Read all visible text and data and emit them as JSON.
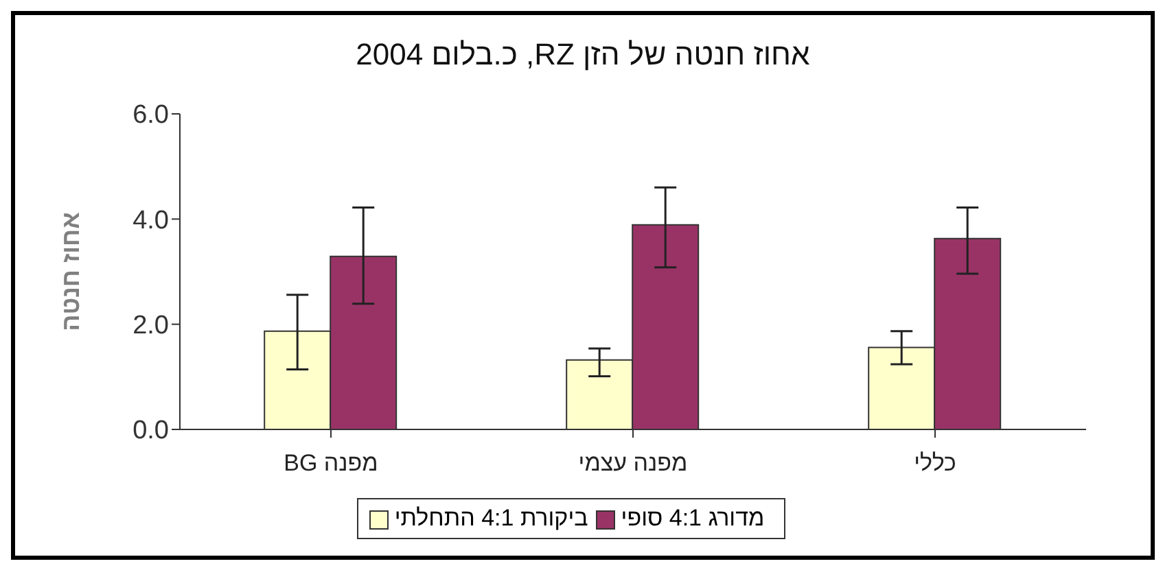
{
  "chart_data": {
    "type": "bar",
    "title": "אחוז חנטה של הזן RZ, כ.בלום 2004",
    "ylabel": "אחוז חנטה",
    "categories": [
      "מפנה BG",
      "מפנה עצמי",
      "כללי"
    ],
    "series": [
      {
        "name": "ביקורת 4:1 התחלתי",
        "color": "#ffffcc",
        "values": [
          1.87,
          1.32,
          1.56
        ],
        "errors": [
          [
            1.14,
            2.56
          ],
          [
            1.01,
            1.54
          ],
          [
            1.24,
            1.87
          ]
        ]
      },
      {
        "name": "מדורג 4:1 סופי",
        "color": "#993366",
        "values": [
          3.29,
          3.89,
          3.63
        ],
        "errors": [
          [
            2.39,
            4.22
          ],
          [
            3.08,
            4.6
          ],
          [
            2.96,
            4.22
          ]
        ]
      }
    ],
    "ylim": [
      0,
      6
    ],
    "yticks": [
      {
        "value": 0,
        "label": "0.0"
      },
      {
        "value": 2,
        "label": "2.0"
      },
      {
        "value": 4,
        "label": "4.0"
      },
      {
        "value": 6,
        "label": "6.0"
      }
    ],
    "grid": false,
    "legend": "bottom"
  }
}
